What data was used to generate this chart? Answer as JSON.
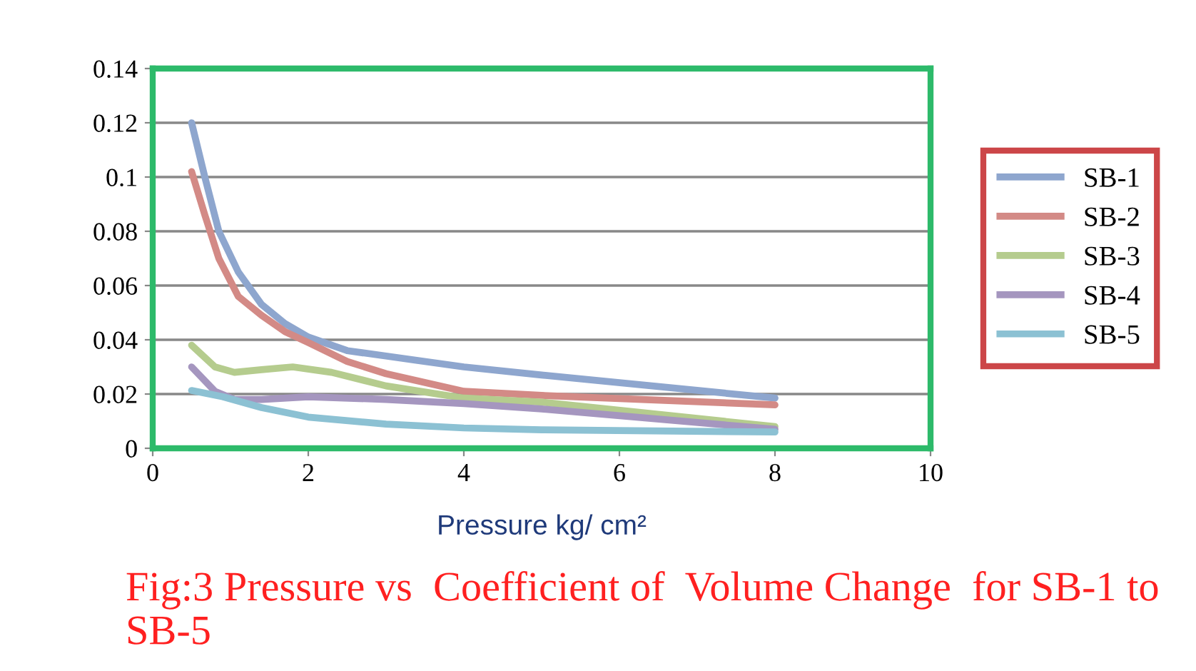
{
  "chart_data": {
    "type": "line",
    "title": "Fig:3 Pressure vs  Coefficient of  Volume Change  for SB-1 to SB-5",
    "xlabel": "Pressure kg/ cm²",
    "series": [
      {
        "name": "SB-1",
        "color": "#8ea6ce",
        "x": [
          0.5,
          0.67,
          0.85,
          1.1,
          1.4,
          1.7,
          2,
          2.5,
          3,
          4,
          5,
          8
        ],
        "values": [
          0.12,
          0.1,
          0.08,
          0.065,
          0.053,
          0.046,
          0.041,
          0.036,
          0.034,
          0.03,
          0.027,
          0.0185
        ]
      },
      {
        "name": "SB-2",
        "color": "#d38a86",
        "x": [
          0.5,
          0.67,
          0.85,
          1.1,
          1.4,
          1.7,
          2,
          2.5,
          3,
          4,
          5,
          8
        ],
        "values": [
          0.102,
          0.086,
          0.07,
          0.056,
          0.049,
          0.043,
          0.039,
          0.032,
          0.0275,
          0.021,
          0.0195,
          0.016
        ]
      },
      {
        "name": "SB-3",
        "color": "#b5cc8e",
        "x": [
          0.5,
          0.8,
          1.05,
          1.4,
          1.8,
          2.3,
          3,
          4,
          5,
          8
        ],
        "values": [
          0.038,
          0.03,
          0.028,
          0.029,
          0.03,
          0.028,
          0.023,
          0.0185,
          0.017,
          0.008
        ]
      },
      {
        "name": "SB-4",
        "color": "#a596bf",
        "x": [
          0.5,
          0.8,
          1.05,
          1.4,
          2,
          3,
          4,
          5,
          8
        ],
        "values": [
          0.03,
          0.021,
          0.018,
          0.018,
          0.019,
          0.018,
          0.0165,
          0.0145,
          0.007
        ]
      },
      {
        "name": "SB-5",
        "color": "#8cc1d3",
        "x": [
          0.5,
          0.9,
          1.4,
          2,
          3,
          4,
          5,
          8
        ],
        "values": [
          0.0213,
          0.019,
          0.015,
          0.0115,
          0.0089,
          0.0075,
          0.0068,
          0.006
        ]
      }
    ],
    "xlim": [
      0,
      10
    ],
    "xticks": [
      0,
      2,
      4,
      6,
      8,
      10
    ],
    "ylim": [
      0,
      0.14
    ],
    "yticks": [
      0,
      0.02,
      0.04,
      0.06,
      0.08,
      0.1,
      0.12,
      0.14
    ],
    "grid": "y",
    "legend": "right",
    "marker": "none",
    "line_style": "solid"
  }
}
